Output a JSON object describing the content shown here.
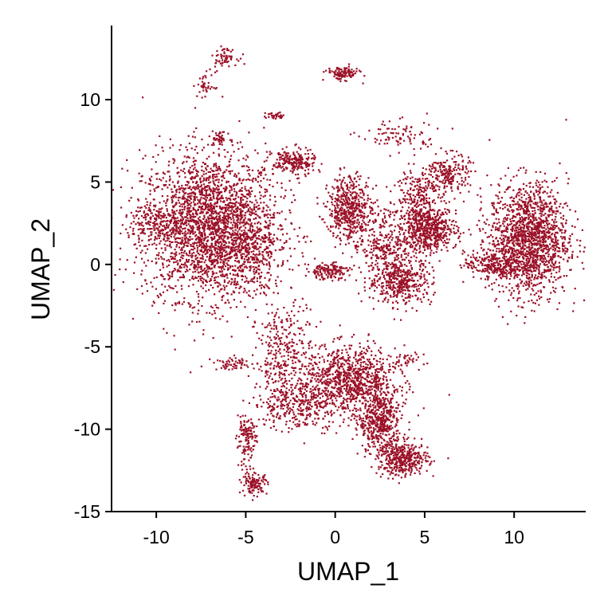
{
  "chart_data": {
    "type": "scatter",
    "title": "",
    "xlabel": "UMAP_1",
    "ylabel": "UMAP_2",
    "xlim": [
      -12.5,
      14
    ],
    "ylim": [
      -15,
      14.5
    ],
    "x_ticks": [
      -10,
      -5,
      0,
      5,
      10
    ],
    "y_ticks": [
      -15,
      -10,
      -5,
      0,
      5,
      10
    ],
    "x_tick_labels": [
      "-10",
      "-5",
      "0",
      "5",
      "10"
    ],
    "y_tick_labels": [
      "-15",
      "-10",
      "-5",
      "0",
      "5",
      "10"
    ],
    "grid": false,
    "legend": "none",
    "point_color": "#9b1127",
    "clusters": [
      {
        "cx": -7.0,
        "cy": 2.3,
        "sx": 1.9,
        "sy": 2.2,
        "n": 2600
      },
      {
        "cx": -10.0,
        "cy": 2.5,
        "sx": 0.7,
        "sy": 0.7,
        "n": 150
      },
      {
        "cx": -4.8,
        "cy": 0.5,
        "sx": 1.0,
        "sy": 1.2,
        "n": 250
      },
      {
        "cx": -6.2,
        "cy": 12.6,
        "sx": 0.35,
        "sy": 0.25,
        "n": 60
      },
      {
        "cx": -7.2,
        "cy": 10.9,
        "sx": 0.25,
        "sy": 0.4,
        "n": 40
      },
      {
        "cx": -6.5,
        "cy": 7.6,
        "sx": 0.22,
        "sy": 0.25,
        "n": 40
      },
      {
        "cx": 0.4,
        "cy": 11.6,
        "sx": 0.45,
        "sy": 0.2,
        "n": 120
      },
      {
        "cx": -3.4,
        "cy": 9.0,
        "sx": 0.3,
        "sy": 0.1,
        "n": 30
      },
      {
        "cx": -2.3,
        "cy": 6.2,
        "sx": 0.6,
        "sy": 0.4,
        "n": 220
      },
      {
        "cx": 0.8,
        "cy": 3.4,
        "sx": 0.6,
        "sy": 1.0,
        "n": 450
      },
      {
        "cx": -0.4,
        "cy": -0.4,
        "sx": 0.6,
        "sy": 0.25,
        "n": 150
      },
      {
        "cx": 3.6,
        "cy": -1.0,
        "sx": 0.9,
        "sy": 0.7,
        "n": 450
      },
      {
        "cx": 2.8,
        "cy": 1.0,
        "sx": 0.7,
        "sy": 0.6,
        "n": 200
      },
      {
        "cx": 5.2,
        "cy": 2.1,
        "sx": 0.8,
        "sy": 0.7,
        "n": 600
      },
      {
        "cx": 4.5,
        "cy": 4.3,
        "sx": 0.6,
        "sy": 0.8,
        "n": 180
      },
      {
        "cx": 6.3,
        "cy": 5.5,
        "sx": 0.6,
        "sy": 0.6,
        "n": 220
      },
      {
        "cx": 3.5,
        "cy": 7.8,
        "sx": 1.1,
        "sy": 0.5,
        "n": 90
      },
      {
        "cx": 10.8,
        "cy": 1.5,
        "sx": 1.1,
        "sy": 1.7,
        "n": 1600
      },
      {
        "cx": 8.8,
        "cy": 0.0,
        "sx": 0.8,
        "sy": 0.4,
        "n": 220
      },
      {
        "cx": 2.0,
        "cy": 3.0,
        "sx": 1.5,
        "sy": 0.5,
        "n": 110
      },
      {
        "cx": 0.8,
        "cy": -7.0,
        "sx": 1.3,
        "sy": 1.0,
        "n": 900
      },
      {
        "cx": -2.8,
        "cy": -5.7,
        "sx": 0.8,
        "sy": 1.6,
        "n": 350
      },
      {
        "cx": -2.0,
        "cy": -8.5,
        "sx": 1.3,
        "sy": 0.8,
        "n": 300
      },
      {
        "cx": -5.0,
        "cy": -10.3,
        "sx": 0.3,
        "sy": 0.4,
        "n": 100
      },
      {
        "cx": -4.5,
        "cy": -13.3,
        "sx": 0.35,
        "sy": 0.3,
        "n": 120
      },
      {
        "cx": -4.9,
        "cy": -11.8,
        "sx": 0.3,
        "sy": 0.8,
        "n": 40
      },
      {
        "cx": 2.5,
        "cy": -9.5,
        "sx": 0.6,
        "sy": 1.0,
        "n": 500
      },
      {
        "cx": 3.8,
        "cy": -11.8,
        "sx": 0.7,
        "sy": 0.5,
        "n": 400
      },
      {
        "cx": -5.6,
        "cy": -6.0,
        "sx": 0.6,
        "sy": 0.2,
        "n": 60
      },
      {
        "cx": 3.6,
        "cy": -5.8,
        "sx": 0.7,
        "sy": 0.2,
        "n": 40
      }
    ]
  }
}
